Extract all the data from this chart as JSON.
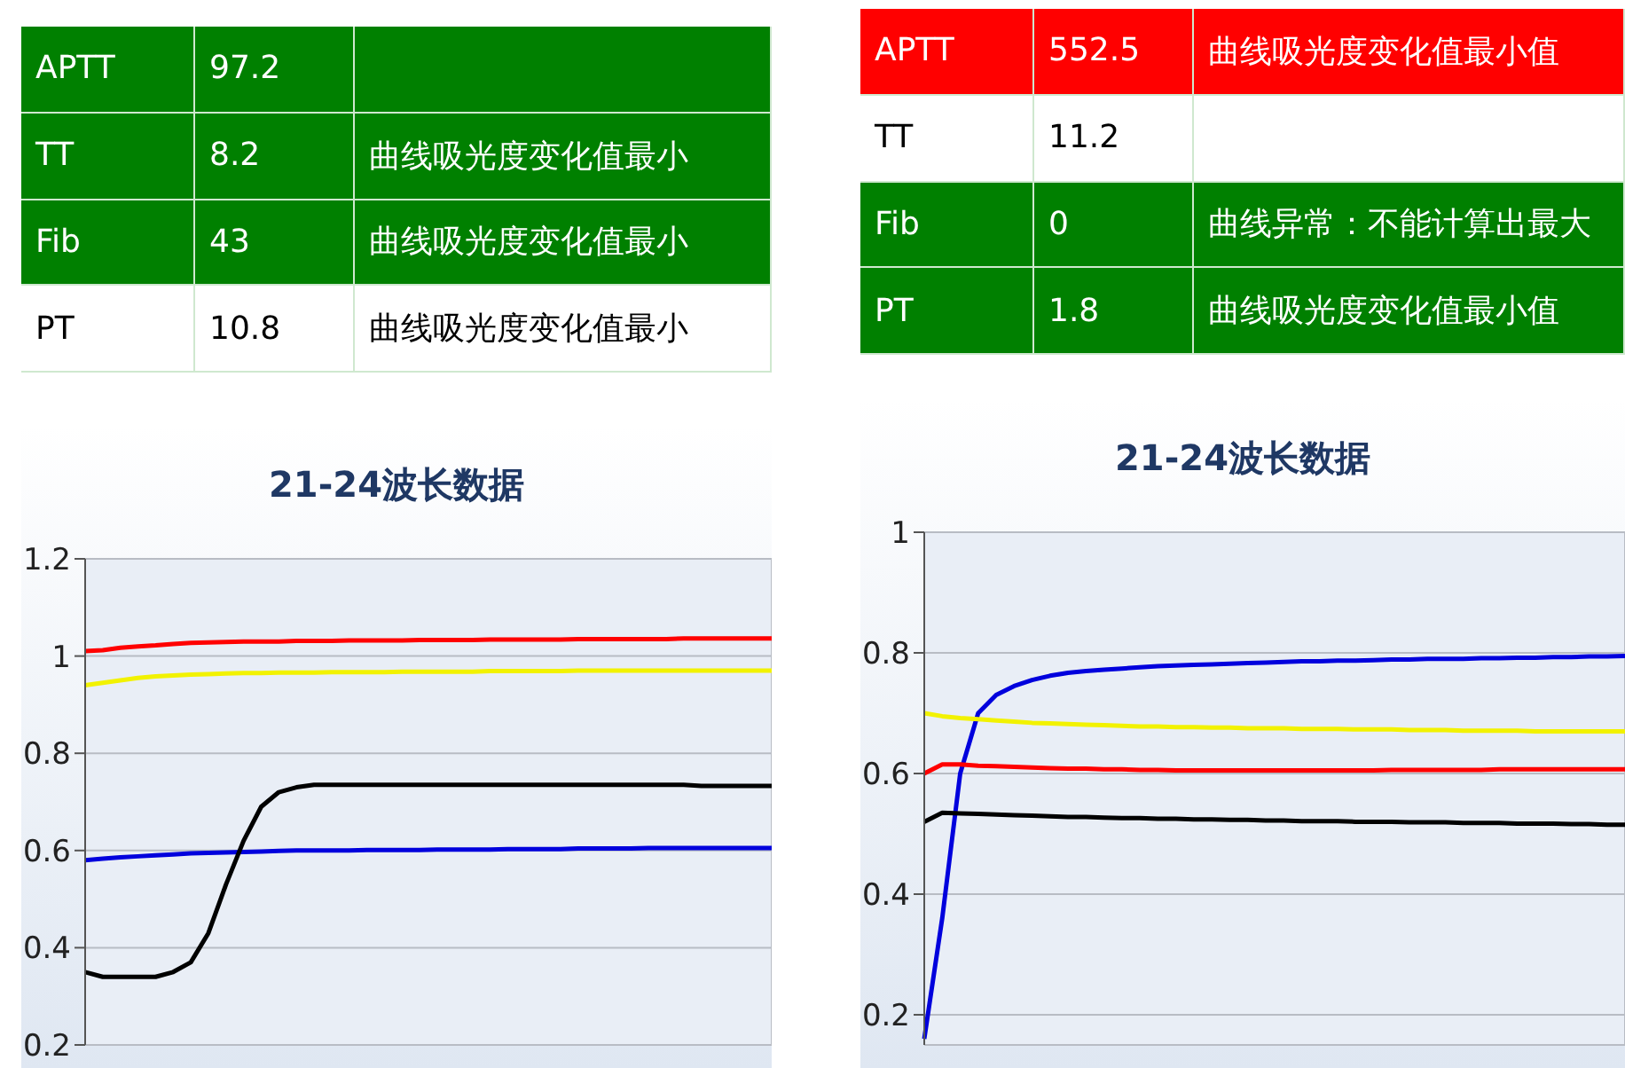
{
  "chart_data": [
    {
      "type": "other",
      "data_labels": true,
      "categories": [
        "APTT",
        "TT",
        "Fib",
        "PT"
      ],
      "values": [
        97.2,
        8.2,
        43,
        10.8
      ],
      "colors": [
        "#008000",
        "#008000",
        "#008000",
        "#ffffff"
      ],
      "annotations": [
        {
          "text": "曲线吸光度变化值最小",
          "y": "TT"
        },
        {
          "text": "曲线吸光度变化值最小",
          "y": "Fib"
        },
        {
          "text": "曲线吸光度变化值最小",
          "y": "PT"
        }
      ]
    },
    {
      "type": "other",
      "data_labels": true,
      "categories": [
        "APTT",
        "TT",
        "Fib",
        "PT"
      ],
      "values": [
        552.5,
        11.2,
        0,
        1.8
      ],
      "colors": [
        "#ff0000",
        "#ffffff",
        "#008000",
        "#008000"
      ],
      "annotations": [
        {
          "text": "曲线吸光度变化值最小值",
          "y": "APTT"
        },
        {
          "text": "曲线异常：不能计算出最大",
          "y": "Fib"
        },
        {
          "text": "曲线吸光度变化值最小值",
          "y": "PT"
        }
      ]
    },
    {
      "type": "line",
      "title": "21-24波长数据",
      "categories": [
        null,
        null,
        null,
        null,
        null,
        null,
        null,
        null,
        null,
        null,
        null,
        null,
        null,
        null,
        null,
        null,
        null,
        null,
        null,
        null,
        null,
        null,
        null,
        null,
        null,
        null,
        null,
        null,
        null,
        null,
        null,
        null,
        null,
        null,
        null,
        null,
        null,
        null,
        null,
        null
      ],
      "ylim": [
        0.2,
        1.2
      ],
      "yticks": [
        0.2,
        0.4,
        0.6,
        0.8,
        1,
        1.2
      ],
      "grid": true,
      "legend": false,
      "series": [
        {
          "color": "#ff0000",
          "values": [
            1.01,
            1.012,
            1.017,
            1.02,
            1.022,
            1.025,
            1.027,
            1.028,
            1.029,
            1.03,
            1.03,
            1.03,
            1.031,
            1.031,
            1.031,
            1.032,
            1.032,
            1.032,
            1.032,
            1.033,
            1.033,
            1.033,
            1.033,
            1.034,
            1.034,
            1.034,
            1.034,
            1.034,
            1.035,
            1.035,
            1.035,
            1.035,
            1.035,
            1.035,
            1.036,
            1.036,
            1.036,
            1.036,
            1.036,
            1.036
          ]
        },
        {
          "color": "#f2f200",
          "values": [
            0.94,
            0.945,
            0.95,
            0.955,
            0.958,
            0.96,
            0.962,
            0.963,
            0.964,
            0.965,
            0.965,
            0.966,
            0.966,
            0.966,
            0.967,
            0.967,
            0.967,
            0.967,
            0.968,
            0.968,
            0.968,
            0.968,
            0.968,
            0.969,
            0.969,
            0.969,
            0.969,
            0.969,
            0.97,
            0.97,
            0.97,
            0.97,
            0.97,
            0.97,
            0.97,
            0.97,
            0.97,
            0.97,
            0.97,
            0.97
          ]
        },
        {
          "color": "#0000dd",
          "values": [
            0.58,
            0.583,
            0.586,
            0.588,
            0.59,
            0.592,
            0.594,
            0.595,
            0.596,
            0.597,
            0.598,
            0.599,
            0.6,
            0.6,
            0.6,
            0.6,
            0.601,
            0.601,
            0.601,
            0.601,
            0.602,
            0.602,
            0.602,
            0.602,
            0.603,
            0.603,
            0.603,
            0.603,
            0.604,
            0.604,
            0.604,
            0.604,
            0.605,
            0.605,
            0.605,
            0.605,
            0.605,
            0.605,
            0.605,
            0.605
          ]
        },
        {
          "color": "#000000",
          "values": [
            0.35,
            0.34,
            0.34,
            0.34,
            0.34,
            0.35,
            0.37,
            0.43,
            0.53,
            0.62,
            0.69,
            0.72,
            0.73,
            0.735,
            0.735,
            0.735,
            0.735,
            0.735,
            0.735,
            0.735,
            0.735,
            0.735,
            0.735,
            0.735,
            0.735,
            0.735,
            0.735,
            0.735,
            0.735,
            0.735,
            0.735,
            0.735,
            0.735,
            0.735,
            0.735,
            0.733,
            0.733,
            0.733,
            0.733,
            0.733
          ]
        }
      ]
    },
    {
      "type": "line",
      "title": "21-24波长数据",
      "categories": [
        null,
        null,
        null,
        null,
        null,
        null,
        null,
        null,
        null,
        null,
        null,
        null,
        null,
        null,
        null,
        null,
        null,
        null,
        null,
        null,
        null,
        null,
        null,
        null,
        null,
        null,
        null,
        null,
        null,
        null,
        null,
        null,
        null,
        null,
        null,
        null,
        null,
        null,
        null,
        null
      ],
      "ylim": [
        0.15,
        1
      ],
      "yticks": [
        0.2,
        0.4,
        0.6,
        0.8,
        1
      ],
      "grid": true,
      "legend": false,
      "series": [
        {
          "color": "#0000dd",
          "values": [
            0.16,
            0.36,
            0.6,
            0.7,
            0.73,
            0.745,
            0.755,
            0.762,
            0.767,
            0.77,
            0.772,
            0.774,
            0.776,
            0.778,
            0.779,
            0.78,
            0.781,
            0.782,
            0.783,
            0.784,
            0.785,
            0.786,
            0.786,
            0.787,
            0.787,
            0.788,
            0.789,
            0.789,
            0.79,
            0.79,
            0.79,
            0.791,
            0.791,
            0.792,
            0.792,
            0.793,
            0.793,
            0.794,
            0.794,
            0.795
          ]
        },
        {
          "color": "#f2f200",
          "values": [
            0.7,
            0.695,
            0.692,
            0.69,
            0.688,
            0.686,
            0.684,
            0.683,
            0.682,
            0.681,
            0.68,
            0.679,
            0.678,
            0.678,
            0.677,
            0.677,
            0.676,
            0.676,
            0.675,
            0.675,
            0.675,
            0.674,
            0.674,
            0.674,
            0.673,
            0.673,
            0.673,
            0.672,
            0.672,
            0.672,
            0.671,
            0.671,
            0.671,
            0.671,
            0.67,
            0.67,
            0.67,
            0.67,
            0.67,
            0.67
          ]
        },
        {
          "color": "#ff0000",
          "values": [
            0.6,
            0.615,
            0.615,
            0.613,
            0.612,
            0.611,
            0.61,
            0.609,
            0.608,
            0.608,
            0.607,
            0.607,
            0.606,
            0.606,
            0.605,
            0.605,
            0.605,
            0.605,
            0.605,
            0.605,
            0.605,
            0.605,
            0.605,
            0.605,
            0.605,
            0.605,
            0.606,
            0.606,
            0.606,
            0.606,
            0.606,
            0.606,
            0.607,
            0.607,
            0.607,
            0.607,
            0.607,
            0.607,
            0.607,
            0.607
          ]
        },
        {
          "color": "#000000",
          "values": [
            0.52,
            0.535,
            0.534,
            0.533,
            0.532,
            0.531,
            0.53,
            0.529,
            0.528,
            0.528,
            0.527,
            0.526,
            0.526,
            0.525,
            0.525,
            0.524,
            0.524,
            0.523,
            0.523,
            0.522,
            0.522,
            0.521,
            0.521,
            0.521,
            0.52,
            0.52,
            0.52,
            0.519,
            0.519,
            0.519,
            0.518,
            0.518,
            0.518,
            0.517,
            0.517,
            0.517,
            0.516,
            0.516,
            0.515,
            0.515
          ]
        }
      ]
    }
  ]
}
